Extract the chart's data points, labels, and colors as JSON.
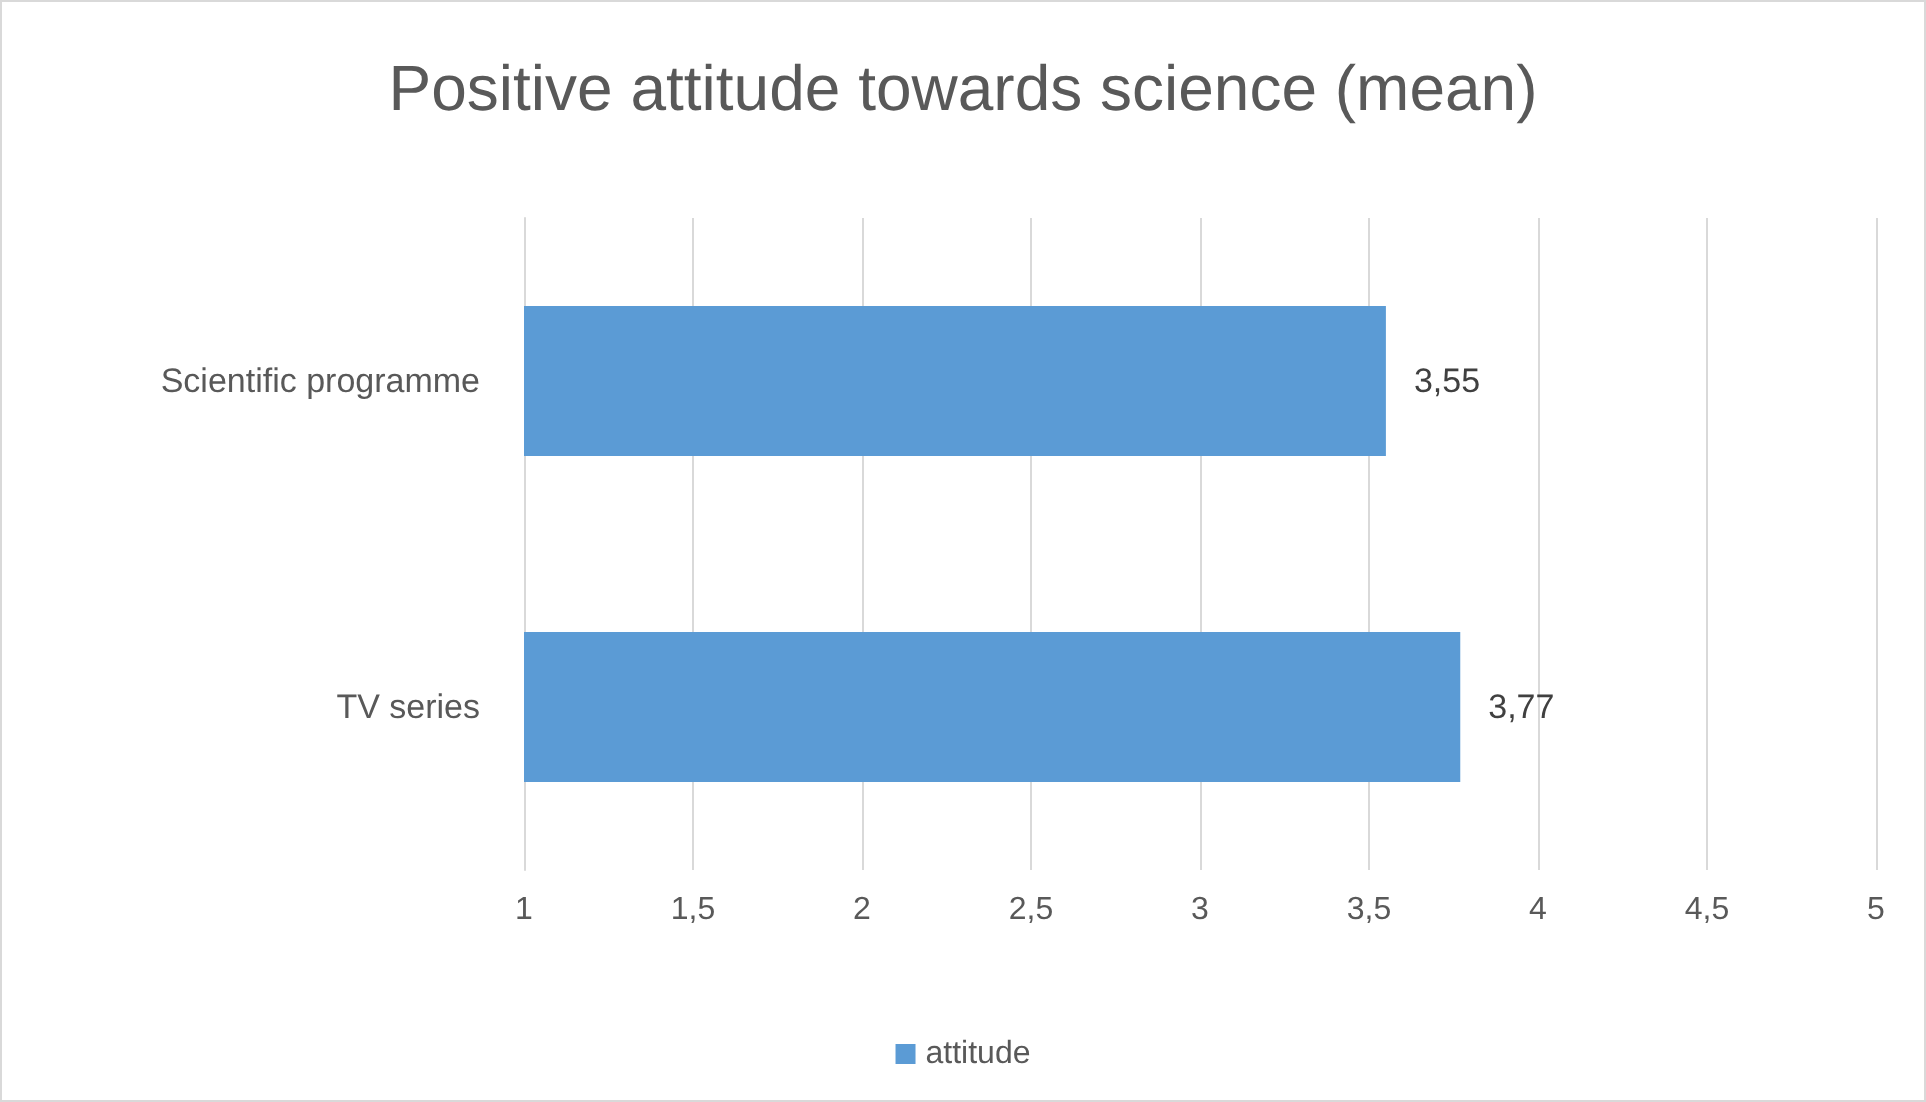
{
  "chart_data": {
    "type": "bar",
    "title": "Positive attitude towards science (mean)",
    "orientation": "horizontal",
    "categories": [
      "Scientific programme",
      "TV series"
    ],
    "series": [
      {
        "name": "attitude",
        "color": "#5b9bd5",
        "values": [
          3.55,
          3.77
        ],
        "value_labels": [
          "3,55",
          "3,77"
        ]
      }
    ],
    "xlim": [
      1,
      5
    ],
    "xticks": [
      1,
      {
        "value": 1.5,
        "label": "1,5"
      },
      2,
      {
        "value": 2.5,
        "label": "2,5"
      },
      3,
      {
        "value": 3.5,
        "label": "3,5"
      },
      4,
      {
        "value": 4.5,
        "label": "4,5"
      },
      5
    ],
    "grid": "x",
    "legend": "bottom"
  }
}
